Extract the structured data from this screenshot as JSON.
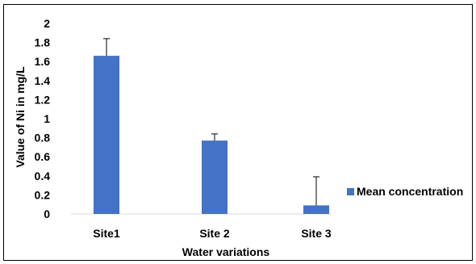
{
  "chart_data": {
    "type": "bar",
    "categories": [
      "Site1",
      "Site 2",
      "Site 3"
    ],
    "series": [
      {
        "name": "Mean concentration",
        "values": [
          1.66,
          0.77,
          0.09
        ],
        "error_plus": [
          0.18,
          0.07,
          0.3
        ],
        "color": "#4472C4"
      }
    ],
    "xlabel": "Water variations",
    "ylabel": "Value of Ni in mg/L",
    "ylim": [
      0,
      2
    ],
    "yticks": [
      0,
      0.2,
      0.4,
      0.6,
      0.8,
      1,
      1.2,
      1.4,
      1.6,
      1.8,
      2
    ],
    "ytick_labels": [
      "0",
      "0.2",
      "0.4",
      "0.6",
      "0.8",
      "1",
      "1.2",
      "1.4",
      "1.6",
      "1.8",
      "2"
    ],
    "grid": false,
    "legend_position": "right"
  }
}
